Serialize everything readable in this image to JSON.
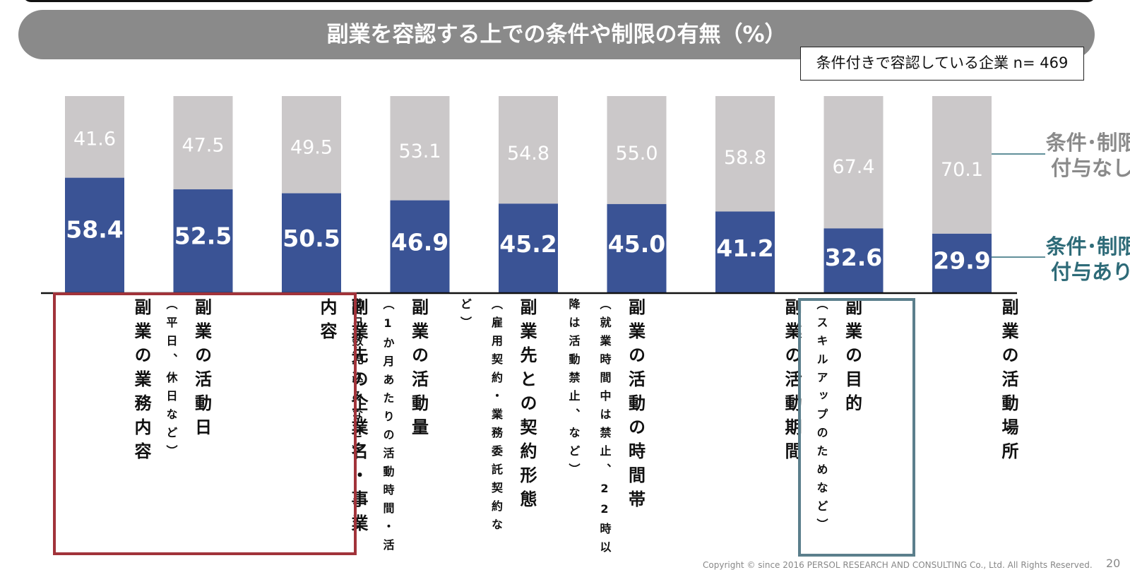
{
  "title": "副業を容認する上での条件や制限の有無（%）",
  "sample_note": "条件付きで容認している企業 n= 469",
  "legend": {
    "without": "条件･制限\n付与なし",
    "with": "条件･制限\n付与あり"
  },
  "colors": {
    "with": "#3a5395",
    "without": "#cbc8c9",
    "highlight_red": "#a1333a",
    "highlight_teal": "#5b7f8c",
    "legend_with_text": "#2e6b78",
    "legend_without_text": "#8a8a8a"
  },
  "chart_data": {
    "type": "bar",
    "stacked": true,
    "percent_total": 100,
    "categories": [
      {
        "main": "副業の業務内容",
        "sub": ""
      },
      {
        "main": "副業の活動日",
        "sub": "（平日、休日など）"
      },
      {
        "main": "副業先の企業名・事業内容",
        "sub": ""
      },
      {
        "main": "副業の活動量",
        "sub": "（1か月あたりの活動時間・活動日数見込みなど）"
      },
      {
        "main": "副業先との契約形態",
        "sub": "（雇用契約・業務委託契約など）"
      },
      {
        "main": "副業の活動の時間帯",
        "sub": "（就業時間中は禁止、22時以降は活動禁止、など）"
      },
      {
        "main": "副業の活動期間",
        "sub": ""
      },
      {
        "main": "副業の目的",
        "sub": "（スキルアップのためなど）"
      },
      {
        "main": "副業の活動場所",
        "sub": ""
      }
    ],
    "series": [
      {
        "name": "条件･制限付与あり",
        "values": [
          58.4,
          52.5,
          50.5,
          46.9,
          45.2,
          45.0,
          41.2,
          32.6,
          29.9
        ]
      },
      {
        "name": "条件･制限付与なし",
        "values": [
          41.6,
          47.5,
          49.5,
          53.1,
          54.8,
          55.0,
          58.8,
          67.4,
          70.1
        ]
      }
    ],
    "ylim": [
      0,
      100
    ],
    "grid": false,
    "legend_position": "right"
  },
  "copyright": "Copyright © since 2016 PERSOL RESEARCH AND CONSULTING Co., Ltd. All Rights Reserved.",
  "page_number": "20"
}
